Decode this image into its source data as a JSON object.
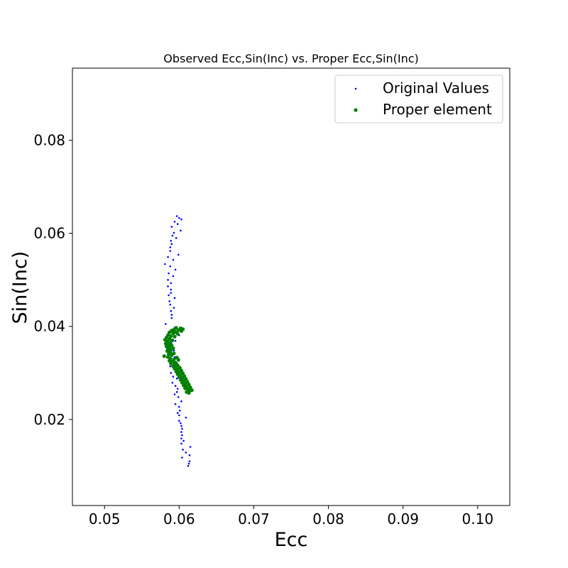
{
  "chart_data": {
    "type": "scatter",
    "title": "Observed Ecc,Sin(Inc) vs. Proper Ecc,Sin(Inc)",
    "xlabel": "Ecc",
    "ylabel": "Sin(Inc)",
    "xlim": [
      0.0457,
      0.1043
    ],
    "ylim": [
      0.0015,
      0.0955
    ],
    "xticks": [
      0.05,
      0.06,
      0.07,
      0.08,
      0.09,
      0.1
    ],
    "xtick_labels": [
      "0.05",
      "0.06",
      "0.07",
      "0.08",
      "0.09",
      "0.10"
    ],
    "yticks": [
      0.02,
      0.04,
      0.06,
      0.08
    ],
    "ytick_labels": [
      "0.02",
      "0.04",
      "0.06",
      "0.08"
    ],
    "grid": false,
    "legend_position": "top-right",
    "series": [
      {
        "name": "Original Values",
        "color": "#0000ff",
        "marker": "small-dot",
        "points": [
          [
            0.0597,
            0.0637
          ],
          [
            0.06,
            0.0633
          ],
          [
            0.0603,
            0.063
          ],
          [
            0.0594,
            0.0625
          ],
          [
            0.0598,
            0.062
          ],
          [
            0.059,
            0.0614
          ],
          [
            0.0602,
            0.0606
          ],
          [
            0.0593,
            0.0601
          ],
          [
            0.0591,
            0.0595
          ],
          [
            0.0596,
            0.059
          ],
          [
            0.0589,
            0.0584
          ],
          [
            0.059,
            0.0577
          ],
          [
            0.0588,
            0.057
          ],
          [
            0.0588,
            0.0562
          ],
          [
            0.0599,
            0.0554
          ],
          [
            0.0585,
            0.0549
          ],
          [
            0.0592,
            0.0543
          ],
          [
            0.0581,
            0.0534
          ],
          [
            0.0588,
            0.0529
          ],
          [
            0.0595,
            0.0522
          ],
          [
            0.0586,
            0.0514
          ],
          [
            0.0592,
            0.0508
          ],
          [
            0.0585,
            0.05
          ],
          [
            0.0589,
            0.0493
          ],
          [
            0.0585,
            0.0486
          ],
          [
            0.0589,
            0.0479
          ],
          [
            0.0589,
            0.0472
          ],
          [
            0.0586,
            0.0467
          ],
          [
            0.0594,
            0.0461
          ],
          [
            0.0587,
            0.0454
          ],
          [
            0.0588,
            0.0447
          ],
          [
            0.0593,
            0.044
          ],
          [
            0.0589,
            0.0433
          ],
          [
            0.059,
            0.0425
          ],
          [
            0.059,
            0.0418
          ],
          [
            0.0582,
            0.0405
          ],
          [
            0.0594,
            0.0397
          ],
          [
            0.0598,
            0.039
          ],
          [
            0.06,
            0.0381
          ],
          [
            0.0588,
            0.0375
          ],
          [
            0.0595,
            0.0369
          ],
          [
            0.059,
            0.0362
          ],
          [
            0.0588,
            0.0355
          ],
          [
            0.0593,
            0.0348
          ],
          [
            0.059,
            0.0341
          ],
          [
            0.0594,
            0.0334
          ],
          [
            0.0589,
            0.0327
          ],
          [
            0.0597,
            0.0321
          ],
          [
            0.0588,
            0.0314
          ],
          [
            0.0596,
            0.0306
          ],
          [
            0.0589,
            0.03
          ],
          [
            0.0592,
            0.0292
          ],
          [
            0.0597,
            0.0288
          ],
          [
            0.0591,
            0.0279
          ],
          [
            0.0595,
            0.0272
          ],
          [
            0.0598,
            0.0266
          ],
          [
            0.0597,
            0.0259
          ],
          [
            0.0594,
            0.0254
          ],
          [
            0.0599,
            0.0248
          ],
          [
            0.0603,
            0.0239
          ],
          [
            0.0595,
            0.0233
          ],
          [
            0.06,
            0.0227
          ],
          [
            0.0601,
            0.0219
          ],
          [
            0.0598,
            0.0214
          ],
          [
            0.06,
            0.0209
          ],
          [
            0.0609,
            0.0204
          ],
          [
            0.06,
            0.0197
          ],
          [
            0.0602,
            0.0192
          ],
          [
            0.0603,
            0.0186
          ],
          [
            0.0604,
            0.018
          ],
          [
            0.0603,
            0.0173
          ],
          [
            0.0604,
            0.0166
          ],
          [
            0.0603,
            0.0159
          ],
          [
            0.0606,
            0.0154
          ],
          [
            0.0603,
            0.0148
          ],
          [
            0.0615,
            0.0141
          ],
          [
            0.0605,
            0.0135
          ],
          [
            0.0609,
            0.0129
          ],
          [
            0.0614,
            0.0123
          ],
          [
            0.0604,
            0.0118
          ],
          [
            0.0614,
            0.011
          ],
          [
            0.0613,
            0.0105
          ],
          [
            0.0612,
            0.01
          ]
        ]
      },
      {
        "name": "Proper element",
        "color": "#008000",
        "marker": "dot",
        "points": [
          [
            0.0596,
            0.0397
          ],
          [
            0.0602,
            0.0396
          ],
          [
            0.0605,
            0.0394
          ],
          [
            0.0593,
            0.0393
          ],
          [
            0.0599,
            0.0392
          ],
          [
            0.059,
            0.0391
          ],
          [
            0.0603,
            0.039
          ],
          [
            0.0595,
            0.0388
          ],
          [
            0.0587,
            0.0387
          ],
          [
            0.0592,
            0.0385
          ],
          [
            0.0598,
            0.0384
          ],
          [
            0.0585,
            0.0381
          ],
          [
            0.0589,
            0.0379
          ],
          [
            0.0594,
            0.0378
          ],
          [
            0.0583,
            0.0376
          ],
          [
            0.0587,
            0.0373
          ],
          [
            0.0581,
            0.0371
          ],
          [
            0.0591,
            0.037
          ],
          [
            0.0584,
            0.0368
          ],
          [
            0.0588,
            0.0365
          ],
          [
            0.0582,
            0.0363
          ],
          [
            0.0586,
            0.0361
          ],
          [
            0.059,
            0.0359
          ],
          [
            0.0583,
            0.0357
          ],
          [
            0.0587,
            0.0355
          ],
          [
            0.0592,
            0.0353
          ],
          [
            0.0585,
            0.0351
          ],
          [
            0.0589,
            0.0349
          ],
          [
            0.0584,
            0.0347
          ],
          [
            0.0588,
            0.0345
          ],
          [
            0.0593,
            0.0342
          ],
          [
            0.0586,
            0.034
          ],
          [
            0.059,
            0.0338
          ],
          [
            0.058,
            0.0336
          ],
          [
            0.0585,
            0.0334
          ],
          [
            0.0597,
            0.0333
          ],
          [
            0.0588,
            0.0331
          ],
          [
            0.0593,
            0.0329
          ],
          [
            0.0599,
            0.0328
          ],
          [
            0.0587,
            0.0326
          ],
          [
            0.0591,
            0.0324
          ],
          [
            0.0595,
            0.0322
          ],
          [
            0.0589,
            0.032
          ],
          [
            0.0594,
            0.0318
          ],
          [
            0.0598,
            0.0316
          ],
          [
            0.0592,
            0.0314
          ],
          [
            0.0596,
            0.0312
          ],
          [
            0.0601,
            0.0311
          ],
          [
            0.0594,
            0.0309
          ],
          [
            0.0598,
            0.0307
          ],
          [
            0.0603,
            0.0305
          ],
          [
            0.0596,
            0.0303
          ],
          [
            0.06,
            0.0301
          ],
          [
            0.0605,
            0.0299
          ],
          [
            0.0598,
            0.0297
          ],
          [
            0.0602,
            0.0295
          ],
          [
            0.0607,
            0.0293
          ],
          [
            0.06,
            0.0291
          ],
          [
            0.0604,
            0.0289
          ],
          [
            0.0609,
            0.0287
          ],
          [
            0.0602,
            0.0285
          ],
          [
            0.0606,
            0.0283
          ],
          [
            0.0611,
            0.0281
          ],
          [
            0.0604,
            0.0279
          ],
          [
            0.0608,
            0.0277
          ],
          [
            0.0613,
            0.0275
          ],
          [
            0.0606,
            0.0273
          ],
          [
            0.061,
            0.0271
          ],
          [
            0.0615,
            0.0269
          ],
          [
            0.0608,
            0.0267
          ],
          [
            0.0612,
            0.0265
          ],
          [
            0.0617,
            0.0263
          ],
          [
            0.0614,
            0.0261
          ],
          [
            0.061,
            0.0259
          ],
          [
            0.0613,
            0.0257
          ]
        ]
      }
    ]
  }
}
